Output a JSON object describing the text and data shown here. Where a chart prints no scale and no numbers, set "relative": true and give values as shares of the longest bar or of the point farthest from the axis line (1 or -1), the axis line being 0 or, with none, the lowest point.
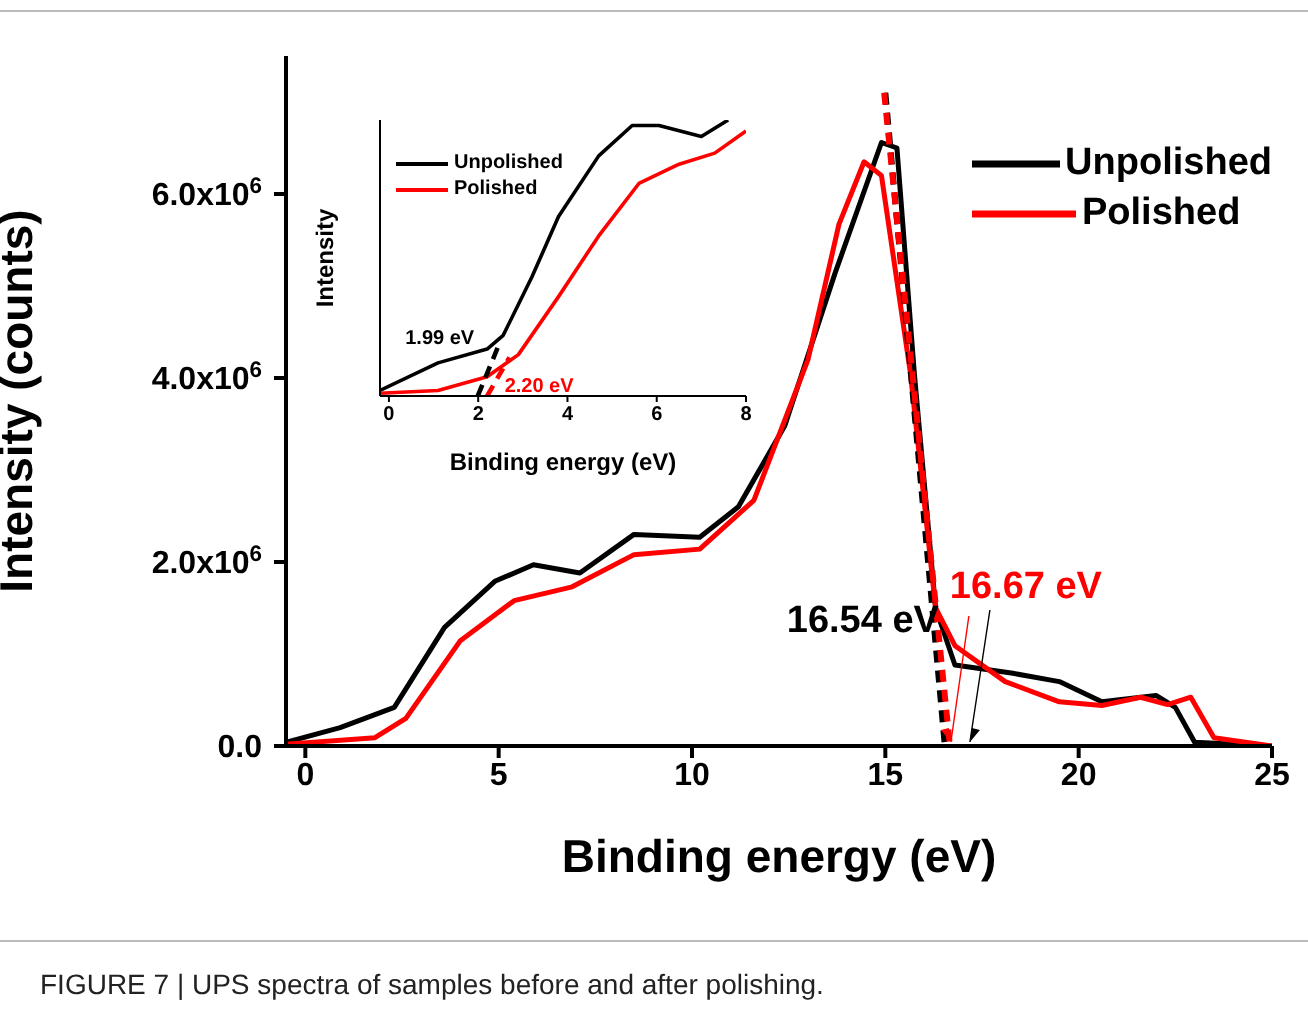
{
  "chart_data": [
    {
      "type": "line",
      "xlabel": "Binding energy (eV)",
      "ylabel": "Intensity (counts)",
      "xlim": [
        -0.5,
        25
      ],
      "xticks": [
        0,
        5,
        10,
        15,
        20,
        25
      ],
      "ylim": [
        0,
        7500000
      ],
      "yticks": [
        {
          "value": 0,
          "label": "0.0"
        },
        {
          "value": 2000000,
          "label": "2.0x10$^{6}$"
        },
        {
          "value": 4000000,
          "label": "4.0x10$^{6}$"
        },
        {
          "value": 6000000,
          "label": "6.0x10$^{6}$"
        }
      ],
      "legend": "top right",
      "grid": false,
      "line_style": "solid",
      "series": [
        {
          "name": "Unpolished",
          "color": "#000000",
          "x": [
            -0.5,
            0.9,
            2.3,
            3.6,
            4.9,
            5.9,
            7.1,
            8.5,
            10.2,
            11.2,
            12.4,
            13.7,
            14.9,
            15.3,
            15.75,
            16.3,
            16.8,
            18.3,
            19.5,
            20.6,
            22.0,
            22.5,
            23.0,
            25
          ],
          "values": [
            40000,
            200000,
            420000,
            1290000,
            1790000,
            1970000,
            1880000,
            2300000,
            2270000,
            2600000,
            3480000,
            5140000,
            6560000,
            6500000,
            4050000,
            1500000,
            880000,
            790000,
            700000,
            480000,
            550000,
            420000,
            40000,
            0
          ]
        },
        {
          "name": "Polished",
          "color": "#ff0000",
          "x": [
            -0.5,
            1.8,
            2.6,
            4.0,
            5.4,
            6.9,
            8.5,
            10.2,
            11.6,
            13.0,
            13.8,
            14.45,
            14.9,
            15.65,
            16.3,
            16.8,
            18.1,
            19.5,
            20.6,
            21.6,
            22.3,
            22.9,
            23.5,
            25
          ],
          "values": [
            20000,
            90000,
            300000,
            1140000,
            1580000,
            1730000,
            2080000,
            2140000,
            2670000,
            4200000,
            5670000,
            6350000,
            6200000,
            4050000,
            1500000,
            1090000,
            700000,
            480000,
            440000,
            530000,
            450000,
            530000,
            90000,
            0
          ]
        },
        {
          "color": "#000000",
          "line_style": "dashed",
          "x": [
            15.0,
            16.54
          ],
          "values": [
            7100000,
            0
          ]
        },
        {
          "color": "#ff0000",
          "line_style": "dashed",
          "x": [
            14.97,
            16.67
          ],
          "values": [
            7100000,
            0
          ]
        }
      ],
      "annotations": [
        {
          "text": "16.54 eV",
          "x": 16.54,
          "y": 0
        },
        {
          "text": "16.67 eV",
          "x": 16.67,
          "y": 0
        },
        "FIGURE 7 | UPS spectra of samples before and after polishing."
      ]
    },
    {
      "type": "line",
      "relative": true,
      "xlabel": "Binding energy (eV)",
      "ylabel": "Intensity",
      "xlim": [
        -0.2,
        8
      ],
      "xticks": [
        0,
        2,
        4,
        6,
        8
      ],
      "tick_labels": "x",
      "legend": "top left",
      "grid": false,
      "line_style": "solid",
      "series": [
        {
          "name": "Unpolished",
          "color": "#000000",
          "x": [
            -0.2,
            1.1,
            2.2,
            2.56,
            3.2,
            3.8,
            4.7,
            5.45,
            6.05,
            7.0,
            7.6
          ],
          "values": [
            0.02,
            0.12,
            0.17,
            0.22,
            0.43,
            0.65,
            0.87,
            0.98,
            0.98,
            0.94,
            1
          ]
        },
        {
          "name": "Polished",
          "color": "#ff0000",
          "x": [
            -0.2,
            1.1,
            2.2,
            2.9,
            3.8,
            4.7,
            5.6,
            6.5,
            7.3,
            8.0
          ],
          "values": [
            0.01,
            0.02,
            0.07,
            0.15,
            0.36,
            0.58,
            0.77,
            0.84,
            0.88,
            0.96
          ]
        },
        {
          "color": "#000000",
          "line_style": "dashed",
          "x": [
            1.99,
            2.5
          ],
          "values": [
            0,
            0.2
          ]
        },
        {
          "color": "#ff0000",
          "line_style": "dashed",
          "x": [
            2.2,
            2.7
          ],
          "values": [
            0,
            0.14
          ]
        }
      ],
      "annotations": [
        {
          "text": "1.99 eV",
          "x": 1.99,
          "y": 0
        },
        {
          "text": "2.20 eV",
          "x": 2.2,
          "y": 0
        }
      ]
    }
  ]
}
